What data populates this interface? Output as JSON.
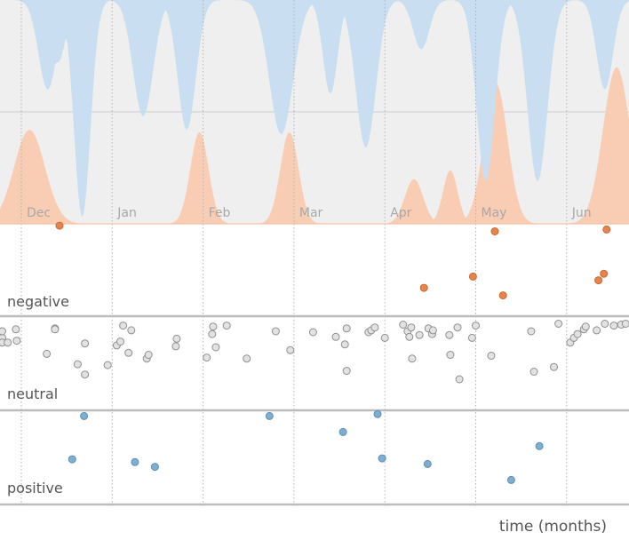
{
  "chart_data": {
    "type": "scatter",
    "x_axis_label": "time (months)",
    "month_ticks": [
      "Dec",
      "Jan",
      "Feb",
      "Mar",
      "Apr",
      "May",
      "Jun"
    ],
    "x_range_months": [
      -0.2,
      6.5
    ],
    "bands": [
      "negative",
      "neutral",
      "positive"
    ],
    "band_y_range": [
      0,
      1
    ],
    "density_y_range": [
      0,
      1
    ],
    "colors": {
      "negative": "#e8834c",
      "negative_stroke": "#c86a33",
      "neutral_fill": "#e2e2e2",
      "neutral_stroke": "#8f8f8f",
      "positive": "#7eaed0",
      "positive_stroke": "#5a8fb5",
      "top_background": "#efefef",
      "density_positive": "#c9def0",
      "density_negative": "#f9cdb4"
    },
    "positive_density": [
      {
        "center": 0.29,
        "height": 0.4,
        "width": 0.1
      },
      {
        "center": 0.67,
        "height": 0.97,
        "width": 0.09
      },
      {
        "center": 0.4,
        "height": 0.28,
        "width": 0.09
      },
      {
        "center": 1.34,
        "height": 0.52,
        "width": 0.11
      },
      {
        "center": 1.82,
        "height": 0.58,
        "width": 0.1
      },
      {
        "center": 2.86,
        "height": 0.6,
        "width": 0.13
      },
      {
        "center": 3.4,
        "height": 0.42,
        "width": 0.08
      },
      {
        "center": 3.79,
        "height": 0.66,
        "width": 0.11
      },
      {
        "center": 4.4,
        "height": 0.22,
        "width": 0.09
      },
      {
        "center": 5.11,
        "height": 0.81,
        "width": 0.1
      },
      {
        "center": 5.68,
        "height": 0.81,
        "width": 0.11
      },
      {
        "center": 6.42,
        "height": 0.4,
        "width": 0.09
      }
    ],
    "negative_density": [
      {
        "center": 0.09,
        "height": 0.42,
        "width": 0.17
      },
      {
        "center": 1.96,
        "height": 0.41,
        "width": 0.1
      },
      {
        "center": 2.95,
        "height": 0.41,
        "width": 0.1
      },
      {
        "center": 4.32,
        "height": 0.2,
        "width": 0.1
      },
      {
        "center": 4.72,
        "height": 0.24,
        "width": 0.08
      },
      {
        "center": 5.22,
        "height": 0.63,
        "width": 0.13
      },
      {
        "center": 6.55,
        "height": 0.7,
        "width": 0.15
      }
    ],
    "series": [
      {
        "name": "negative",
        "points": [
          {
            "x": 0.42,
            "y": 0.98
          },
          {
            "x": 4.43,
            "y": 0.32
          },
          {
            "x": 4.97,
            "y": 0.44
          },
          {
            "x": 5.21,
            "y": 0.92
          },
          {
            "x": 5.3,
            "y": 0.24
          },
          {
            "x": 6.35,
            "y": 0.4
          },
          {
            "x": 6.41,
            "y": 0.47
          },
          {
            "x": 6.44,
            "y": 0.94
          }
        ]
      },
      {
        "name": "neutral",
        "points": [
          {
            "x": -0.21,
            "y": 0.77
          },
          {
            "x": -0.21,
            "y": 0.84
          },
          {
            "x": -0.21,
            "y": 0.72
          },
          {
            "x": -0.15,
            "y": 0.72
          },
          {
            "x": -0.06,
            "y": 0.86
          },
          {
            "x": -0.05,
            "y": 0.74
          },
          {
            "x": 0.28,
            "y": 0.6
          },
          {
            "x": 0.37,
            "y": 0.87
          },
          {
            "x": 0.37,
            "y": 0.86
          },
          {
            "x": 0.62,
            "y": 0.49
          },
          {
            "x": 0.7,
            "y": 0.71
          },
          {
            "x": 0.7,
            "y": 0.38
          },
          {
            "x": 0.95,
            "y": 0.48
          },
          {
            "x": 1.05,
            "y": 0.69
          },
          {
            "x": 1.09,
            "y": 0.73
          },
          {
            "x": 1.12,
            "y": 0.9
          },
          {
            "x": 1.18,
            "y": 0.61
          },
          {
            "x": 1.21,
            "y": 0.85
          },
          {
            "x": 1.38,
            "y": 0.55
          },
          {
            "x": 1.4,
            "y": 0.59
          },
          {
            "x": 1.7,
            "y": 0.68
          },
          {
            "x": 1.71,
            "y": 0.76
          },
          {
            "x": 2.04,
            "y": 0.56
          },
          {
            "x": 2.1,
            "y": 0.81
          },
          {
            "x": 2.11,
            "y": 0.89
          },
          {
            "x": 2.14,
            "y": 0.67
          },
          {
            "x": 2.26,
            "y": 0.9
          },
          {
            "x": 2.48,
            "y": 0.55
          },
          {
            "x": 2.8,
            "y": 0.84
          },
          {
            "x": 2.96,
            "y": 0.64
          },
          {
            "x": 3.21,
            "y": 0.83
          },
          {
            "x": 3.46,
            "y": 0.78
          },
          {
            "x": 3.56,
            "y": 0.7
          },
          {
            "x": 3.58,
            "y": 0.87
          },
          {
            "x": 3.58,
            "y": 0.42
          },
          {
            "x": 3.82,
            "y": 0.83
          },
          {
            "x": 3.85,
            "y": 0.85
          },
          {
            "x": 3.89,
            "y": 0.88
          },
          {
            "x": 4.0,
            "y": 0.77
          },
          {
            "x": 4.2,
            "y": 0.91
          },
          {
            "x": 4.25,
            "y": 0.84
          },
          {
            "x": 4.27,
            "y": 0.78
          },
          {
            "x": 4.29,
            "y": 0.88
          },
          {
            "x": 4.3,
            "y": 0.55
          },
          {
            "x": 4.38,
            "y": 0.8
          },
          {
            "x": 4.48,
            "y": 0.87
          },
          {
            "x": 4.52,
            "y": 0.81
          },
          {
            "x": 4.53,
            "y": 0.85
          },
          {
            "x": 4.71,
            "y": 0.8
          },
          {
            "x": 4.72,
            "y": 0.59
          },
          {
            "x": 4.8,
            "y": 0.88
          },
          {
            "x": 4.82,
            "y": 0.33
          },
          {
            "x": 4.96,
            "y": 0.77
          },
          {
            "x": 5.0,
            "y": 0.9
          },
          {
            "x": 5.17,
            "y": 0.58
          },
          {
            "x": 5.61,
            "y": 0.84
          },
          {
            "x": 5.64,
            "y": 0.41
          },
          {
            "x": 5.86,
            "y": 0.46
          },
          {
            "x": 5.91,
            "y": 0.92
          },
          {
            "x": 6.04,
            "y": 0.72
          },
          {
            "x": 6.08,
            "y": 0.77
          },
          {
            "x": 6.12,
            "y": 0.81
          },
          {
            "x": 6.19,
            "y": 0.86
          },
          {
            "x": 6.21,
            "y": 0.89
          },
          {
            "x": 6.33,
            "y": 0.85
          },
          {
            "x": 6.42,
            "y": 0.92
          },
          {
            "x": 6.52,
            "y": 0.9
          },
          {
            "x": 6.6,
            "y": 0.91
          },
          {
            "x": 6.65,
            "y": 0.92
          },
          {
            "x": 6.75,
            "y": 0.92
          }
        ]
      },
      {
        "name": "positive",
        "points": [
          {
            "x": 0.56,
            "y": 0.48
          },
          {
            "x": 0.69,
            "y": 0.94
          },
          {
            "x": 1.25,
            "y": 0.45
          },
          {
            "x": 1.47,
            "y": 0.4
          },
          {
            "x": 2.73,
            "y": 0.94
          },
          {
            "x": 3.54,
            "y": 0.77
          },
          {
            "x": 3.92,
            "y": 0.96
          },
          {
            "x": 3.97,
            "y": 0.49
          },
          {
            "x": 4.47,
            "y": 0.43
          },
          {
            "x": 5.39,
            "y": 0.26
          },
          {
            "x": 5.7,
            "y": 0.62
          }
        ]
      }
    ]
  }
}
